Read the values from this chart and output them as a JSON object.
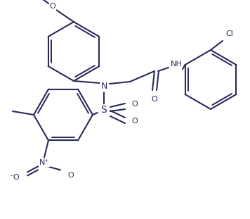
{
  "background_color": "#ffffff",
  "line_color": "#2a2a5a",
  "lw": 1.5,
  "fs": 8.0,
  "fig_width": 3.56,
  "fig_height": 3.11,
  "dpi": 100,
  "xlim": [
    0,
    356
  ],
  "ylim": [
    0,
    311
  ]
}
